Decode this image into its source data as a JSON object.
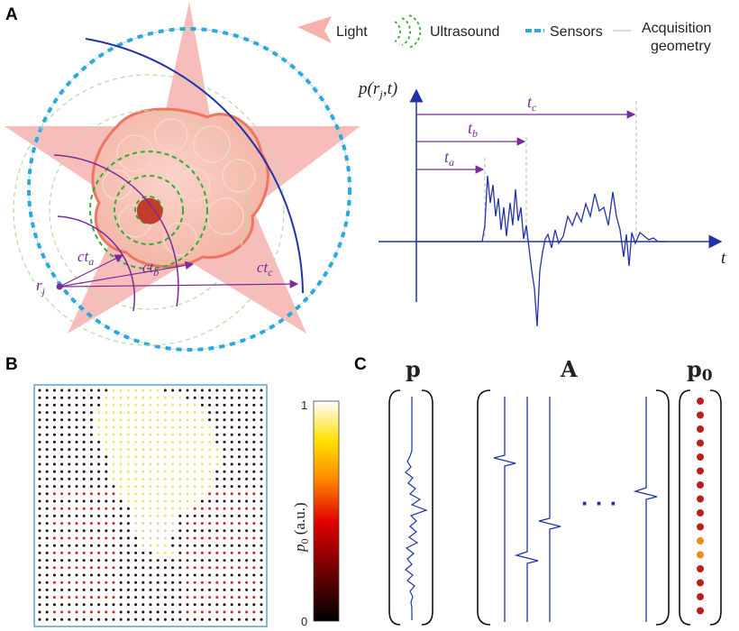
{
  "panel_labels": {
    "a": "A",
    "b": "B",
    "c": "C"
  },
  "legend": {
    "light": "Light",
    "ultrasound": "Ultrasound",
    "sensors": "Sensors",
    "acquisition_line1": "Acquisition",
    "acquisition_line2": "geometry"
  },
  "panel_a": {
    "signal_label": {
      "p": "p(",
      "r": "r",
      "j": "j",
      "t": ",t)"
    },
    "time_labels": [
      {
        "t": "t",
        "sub": "a"
      },
      {
        "t": "t",
        "sub": "b"
      },
      {
        "t": "t",
        "sub": "c"
      }
    ],
    "dist_labels": [
      {
        "ct": "ct",
        "sub": "a"
      },
      {
        "ct": "ct",
        "sub": "b"
      },
      {
        "ct": "ct",
        "sub": "c"
      }
    ],
    "sensor_label": {
      "r": "r",
      "sub": "j"
    },
    "t_axis": "t"
  },
  "panel_b": {
    "colorbar_ticks": [
      "1",
      "0"
    ],
    "colorbar_label": {
      "p": "p",
      "sub": "0",
      "unit": " (a.u.)"
    }
  },
  "panel_c": {
    "p": "p",
    "A": "A",
    "p0": "p",
    "p0_sub": "0",
    "dots": "· · ·"
  },
  "colors": {
    "light": "#f4a9a8",
    "ultrasound": "#2fae2f",
    "sensors": "#29a9e0",
    "signal": "#2233aa",
    "arrows": "#7a2a9a"
  }
}
